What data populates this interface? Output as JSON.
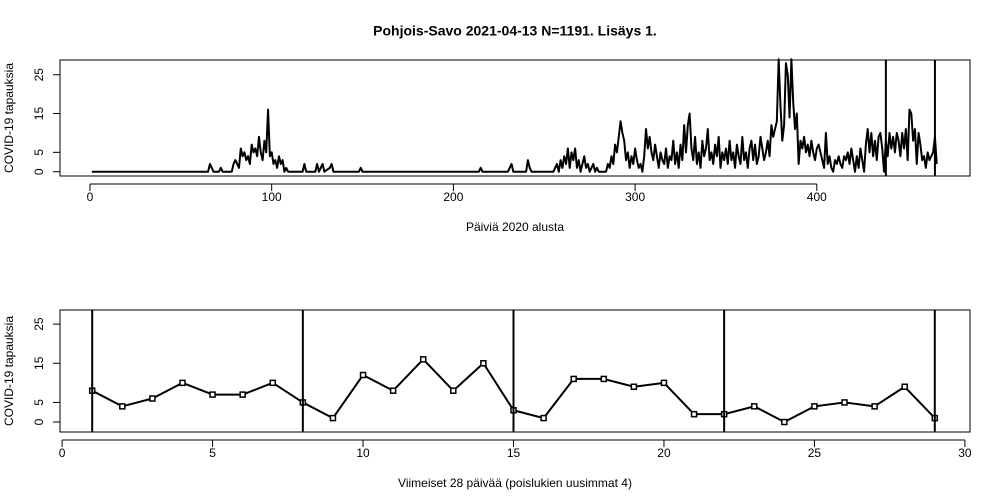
{
  "chart_data": [
    {
      "type": "line",
      "title": "Pohjois-Savo 2021-04-13 N=1191. Lisäys 1.",
      "xlabel": "Päiviä 2020 alusta",
      "ylabel": "COVID-19 tapauksia",
      "color": "#000000",
      "xlim": [
        -16.5,
        484.3
      ],
      "xticks": [
        0,
        100,
        200,
        300,
        400
      ],
      "ylim": [
        -1.1,
        28.8
      ],
      "yticks": [
        0,
        5,
        15,
        25
      ],
      "vlines": [
        438,
        465
      ],
      "markers": false,
      "x": [
        1,
        65,
        66,
        67,
        68,
        71,
        72,
        73,
        78,
        79,
        80,
        81,
        82,
        83,
        84,
        85,
        86,
        87,
        88,
        89,
        90,
        91,
        92,
        93,
        94,
        95,
        96,
        97,
        98,
        99,
        100,
        101,
        102,
        103,
        104,
        105,
        106,
        107,
        108,
        109,
        117,
        118,
        119,
        124,
        125,
        126,
        128,
        129,
        132,
        133,
        134,
        148,
        149,
        150,
        214,
        215,
        216,
        230,
        231,
        232,
        233,
        240,
        241,
        242,
        243,
        255,
        256,
        257,
        258,
        259,
        260,
        261,
        262,
        263,
        264,
        265,
        266,
        267,
        268,
        269,
        270,
        271,
        272,
        273,
        274,
        275,
        276,
        277,
        278,
        279,
        280,
        284,
        285,
        286,
        287,
        288,
        289,
        290,
        291,
        292,
        293,
        294,
        295,
        296,
        297,
        298,
        299,
        300,
        301,
        302,
        303,
        304,
        305,
        306,
        307,
        308,
        309,
        310,
        311,
        312,
        313,
        314,
        315,
        316,
        317,
        318,
        319,
        320,
        321,
        322,
        323,
        324,
        325,
        326,
        327,
        328,
        329,
        330,
        331,
        332,
        333,
        334,
        335,
        336,
        337,
        338,
        339,
        340,
        341,
        342,
        343,
        344,
        345,
        346,
        347,
        348,
        349,
        350,
        351,
        352,
        353,
        354,
        355,
        356,
        357,
        358,
        359,
        360,
        361,
        362,
        363,
        364,
        365,
        366,
        367,
        368,
        369,
        370,
        371,
        372,
        373,
        374,
        375,
        376,
        377,
        378,
        379,
        380,
        381,
        382,
        383,
        384,
        385,
        386,
        387,
        388,
        389,
        390,
        391,
        392,
        393,
        394,
        395,
        396,
        397,
        398,
        399,
        400,
        401,
        402,
        403,
        404,
        405,
        406,
        407,
        408,
        409,
        410,
        411,
        412,
        413,
        414,
        415,
        416,
        417,
        418,
        419,
        420,
        421,
        422,
        423,
        424,
        425,
        426,
        427,
        428,
        429,
        430,
        431,
        432,
        433,
        434,
        435,
        436,
        437,
        438,
        439,
        440,
        441,
        442,
        443,
        444,
        445,
        446,
        447,
        448,
        449,
        450,
        451,
        452,
        453,
        454,
        455,
        456,
        457,
        458,
        459,
        460,
        461,
        462,
        463,
        464,
        465,
        466
      ],
      "values": [
        0,
        0,
        2,
        1,
        0,
        0,
        1,
        0,
        0,
        2,
        3,
        2,
        1,
        6,
        4,
        5,
        3,
        4,
        2,
        7,
        5,
        6,
        4,
        9,
        5,
        3,
        8,
        5,
        16,
        4,
        5,
        2,
        3,
        1,
        4,
        2,
        3,
        0,
        1,
        0,
        0,
        2,
        0,
        0,
        2,
        0,
        2,
        0,
        1,
        2,
        0,
        0,
        1,
        0,
        0,
        1,
        0,
        0,
        1,
        2,
        0,
        0,
        3,
        1,
        0,
        0,
        1,
        2,
        0,
        3,
        1,
        4,
        2,
        6,
        1,
        5,
        3,
        6,
        1,
        3,
        0,
        2,
        4,
        1,
        2,
        0,
        1,
        2,
        0,
        1,
        0,
        0,
        2,
        1,
        4,
        2,
        7,
        5,
        9,
        13,
        10,
        8,
        3,
        5,
        1,
        4,
        2,
        6,
        3,
        1,
        2,
        0,
        4,
        11,
        6,
        9,
        5,
        3,
        7,
        4,
        1,
        5,
        3,
        2,
        6,
        1,
        4,
        3,
        8,
        2,
        5,
        1,
        7,
        3,
        12,
        5,
        12,
        15,
        6,
        3,
        9,
        2,
        5,
        1,
        8,
        4,
        6,
        11,
        3,
        5,
        2,
        7,
        4,
        9,
        1,
        5,
        3,
        6,
        2,
        8,
        3,
        5,
        1,
        7,
        4,
        2,
        9,
        3,
        5,
        1,
        6,
        8,
        3,
        7,
        2,
        4,
        9,
        6,
        3,
        5,
        8,
        4,
        12,
        9,
        11,
        13,
        29,
        17,
        8,
        12,
        28,
        25,
        14,
        29,
        18,
        11,
        15,
        2,
        8,
        6,
        9,
        5,
        7,
        4,
        8,
        5,
        3,
        6,
        7,
        5,
        3,
        1,
        10,
        2,
        4,
        1,
        0,
        3,
        2,
        4,
        2,
        1,
        4,
        3,
        5,
        2,
        6,
        3,
        0,
        4,
        1,
        6,
        3,
        0,
        7,
        11,
        5,
        10,
        4,
        8,
        3,
        9,
        10,
        6,
        0,
        8,
        4,
        10,
        6,
        9,
        5,
        10,
        8,
        4,
        10,
        6,
        11,
        3,
        16,
        15,
        8,
        11,
        2,
        10,
        7,
        3,
        4,
        1,
        5,
        3,
        4,
        5,
        9,
        2
      ]
    },
    {
      "type": "line",
      "xlabel": "Viimeiset 28 päivää (poislukien uusimmat 4)",
      "ylabel": "COVID-19 tapauksia",
      "color": "#000000",
      "xlim": [
        -0.07,
        30.17
      ],
      "xticks": [
        0,
        5,
        10,
        15,
        20,
        25,
        30
      ],
      "ylim": [
        -2.55,
        28.6
      ],
      "yticks": [
        0,
        5,
        15,
        25
      ],
      "vlines": [
        1,
        8,
        15,
        22,
        29
      ],
      "markers": true,
      "x": [
        1,
        2,
        3,
        4,
        5,
        6,
        7,
        8,
        9,
        10,
        11,
        12,
        13,
        14,
        15,
        16,
        17,
        18,
        19,
        20,
        21,
        22,
        23,
        24,
        25,
        26,
        27,
        28,
        29
      ],
      "values": [
        8,
        4,
        6,
        10,
        7,
        7,
        10,
        5,
        1,
        12,
        8,
        16,
        8,
        15,
        3,
        1,
        11,
        11,
        9,
        10,
        2,
        2,
        4,
        0,
        4,
        5,
        4,
        9,
        1
      ]
    }
  ]
}
